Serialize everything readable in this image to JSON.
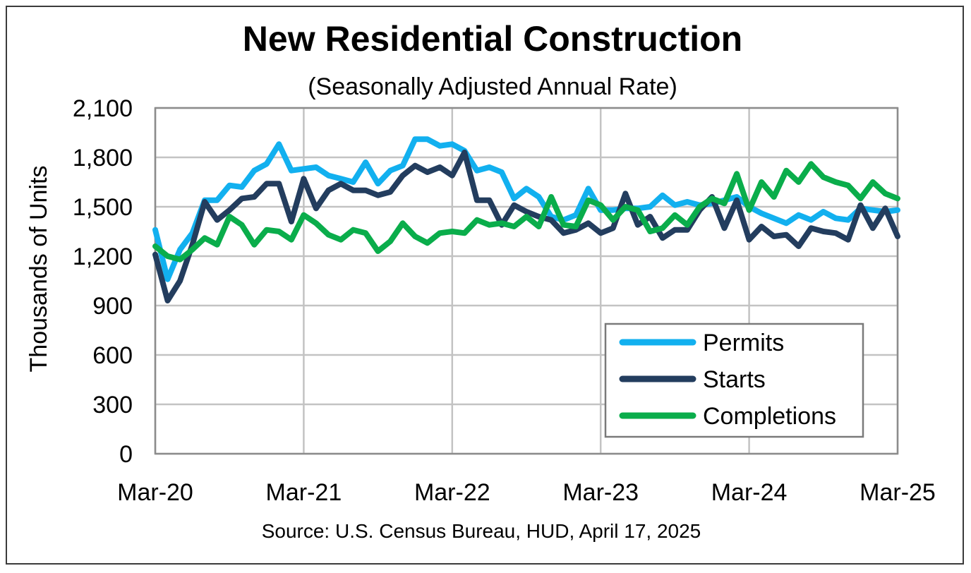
{
  "chart_data": {
    "type": "line",
    "title": "New Residential Construction",
    "subtitle": "(Seasonally Adjusted Annual Rate)",
    "ylabel": "Thousands of Units",
    "xlabel": "",
    "source": "Source:  U.S. Census Bureau, HUD, April 17, 2025",
    "ylim": [
      0,
      2100
    ],
    "yticks": [
      0,
      300,
      600,
      900,
      1200,
      1500,
      1800,
      2100
    ],
    "ytick_labels": [
      "0",
      "300",
      "600",
      "900",
      "1,200",
      "1,500",
      "1,800",
      "2,100"
    ],
    "xtick_labels": [
      "Mar-20",
      "Mar-21",
      "Mar-22",
      "Mar-23",
      "Mar-24",
      "Mar-25"
    ],
    "xtick_index": [
      0,
      12,
      24,
      36,
      48,
      60
    ],
    "grid": true,
    "legend_position": "bottom-right",
    "series": [
      {
        "name": "Permits",
        "color": "#12b0ef",
        "values": [
          1360,
          1060,
          1240,
          1340,
          1540,
          1540,
          1630,
          1620,
          1720,
          1760,
          1880,
          1720,
          1730,
          1740,
          1690,
          1670,
          1650,
          1770,
          1640,
          1720,
          1750,
          1910,
          1910,
          1870,
          1880,
          1840,
          1720,
          1740,
          1710,
          1550,
          1610,
          1560,
          1440,
          1420,
          1450,
          1610,
          1480,
          1480,
          1490,
          1490,
          1500,
          1570,
          1510,
          1530,
          1510,
          1520,
          1540,
          1560,
          1500,
          1460,
          1430,
          1400,
          1450,
          1420,
          1470,
          1430,
          1420,
          1490,
          1480,
          1470,
          1480
        ]
      },
      {
        "name": "Starts",
        "color": "#233d5e",
        "values": [
          1210,
          930,
          1050,
          1270,
          1530,
          1420,
          1480,
          1550,
          1560,
          1640,
          1640,
          1410,
          1670,
          1490,
          1600,
          1640,
          1600,
          1600,
          1570,
          1590,
          1690,
          1750,
          1710,
          1740,
          1690,
          1830,
          1540,
          1540,
          1390,
          1510,
          1470,
          1440,
          1420,
          1340,
          1360,
          1400,
          1340,
          1370,
          1580,
          1390,
          1440,
          1310,
          1360,
          1360,
          1480,
          1560,
          1370,
          1540,
          1300,
          1380,
          1320,
          1330,
          1260,
          1370,
          1350,
          1340,
          1300,
          1510,
          1370,
          1490,
          1320
        ]
      },
      {
        "name": "Completions",
        "color": "#0aad4b",
        "values": [
          1260,
          1200,
          1180,
          1240,
          1310,
          1270,
          1440,
          1390,
          1270,
          1360,
          1350,
          1300,
          1450,
          1400,
          1330,
          1300,
          1360,
          1340,
          1230,
          1290,
          1400,
          1320,
          1280,
          1340,
          1350,
          1340,
          1420,
          1390,
          1400,
          1380,
          1440,
          1380,
          1560,
          1390,
          1380,
          1540,
          1510,
          1420,
          1500,
          1480,
          1350,
          1370,
          1450,
          1390,
          1500,
          1550,
          1520,
          1700,
          1480,
          1650,
          1560,
          1720,
          1650,
          1760,
          1680,
          1650,
          1630,
          1550,
          1650,
          1580,
          1550
        ]
      }
    ]
  }
}
